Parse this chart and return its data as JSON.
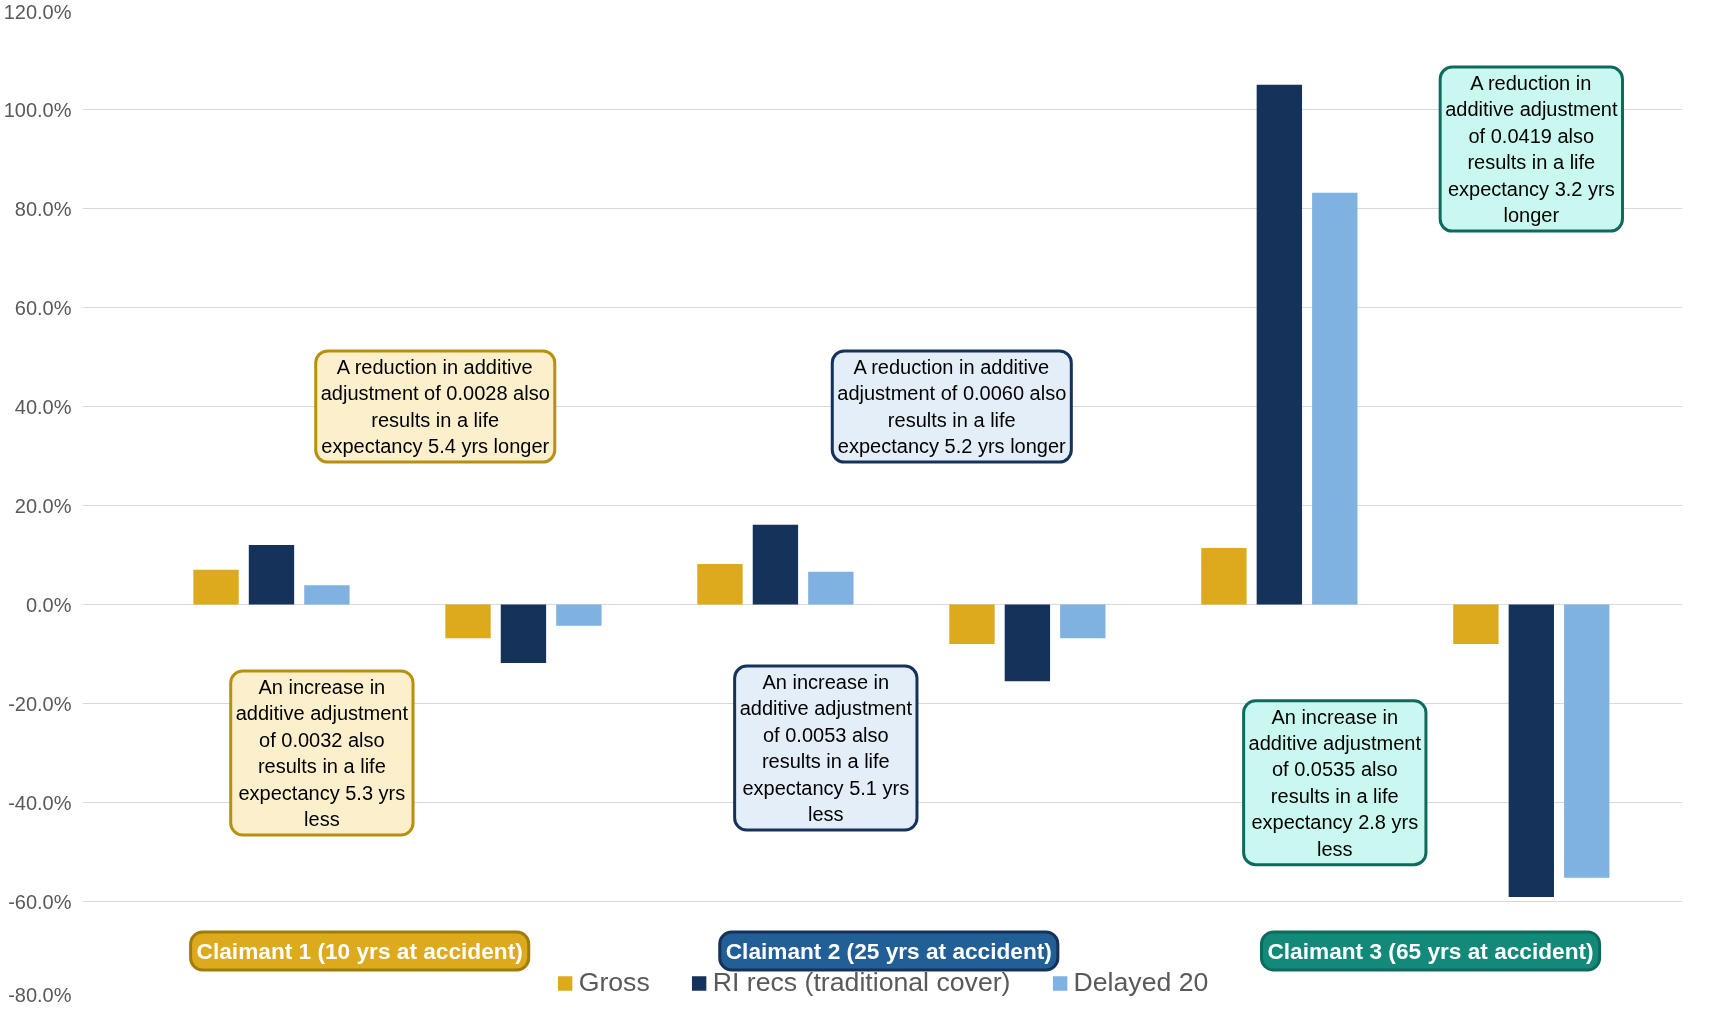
{
  "chart_data": {
    "type": "bar",
    "categories": [
      null,
      null,
      null,
      null,
      null,
      null
    ],
    "series": [
      {
        "name": "Gross",
        "color": "#dcaa1c",
        "values": [
          7.0,
          -6.8,
          8.2,
          -8.0,
          11.4,
          -8.0
        ]
      },
      {
        "name": "RI recs (traditional cover)",
        "color": "#14325a",
        "values": [
          12.0,
          -11.8,
          16.1,
          -15.5,
          105.0,
          -59.1
        ]
      },
      {
        "name": "Delayed 20",
        "color": "#7fb2e0",
        "values": [
          3.9,
          -4.3,
          6.6,
          -6.8,
          83.2,
          -55.2
        ]
      }
    ],
    "ylim": [
      -80,
      120
    ],
    "yticks": [
      {
        "value": -80,
        "label": "-80.0%"
      },
      {
        "value": -60,
        "label": "-60.0%"
      },
      {
        "value": -40,
        "label": "-40.0%"
      },
      {
        "value": -20,
        "label": "-20.0%"
      },
      {
        "value": 0,
        "label": "0.0%"
      },
      {
        "value": 20,
        "label": "20.0%"
      },
      {
        "value": 40,
        "label": "40.0%"
      },
      {
        "value": 60,
        "label": "60.0%"
      },
      {
        "value": 80,
        "label": "80.0%"
      },
      {
        "value": 100,
        "label": "100.0%"
      },
      {
        "value": 120,
        "label": "120.0%"
      }
    ],
    "grid": "y",
    "legend": "bottom",
    "tick_labels": "y",
    "annotations": [
      "A reduction in additive adjustment of 0.0028 also results in a life expectancy 5.4 yrs longer",
      "A reduction in additive adjustment of 0.0060 also results in a life expectancy 5.2 yrs longer",
      "A reduction in additive adjustment of 0.0419 also results in a life expectancy 3.2 yrs longer",
      "An increase in additive adjustment of 0.0032 also results in a life expectancy 5.3 yrs less",
      "An increase in additive adjustment of 0.0053 also results in a life expectancy 5.1 yrs less",
      "An increase in additive adjustment of 0.0535 also results in a life expectancy 2.8 yrs less",
      "Claimant 1 (10 yrs at accident)",
      "Claimant 2 (25 yrs at accident)",
      "Claimant 3 (65 yrs at accident)"
    ]
  }
}
